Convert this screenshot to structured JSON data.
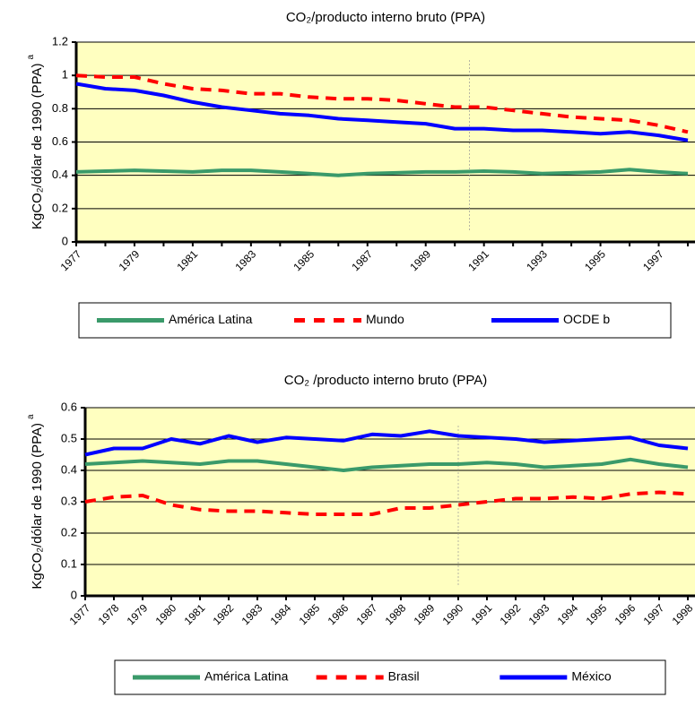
{
  "chart_data": [
    {
      "type": "line",
      "title": "CO₂/producto interno bruto (PPA)",
      "y_label": "KgCO₂/dólar de 1990 (PPA)",
      "y_label_note": "a",
      "categories": [
        "1977",
        null,
        "1979",
        null,
        "1981",
        null,
        "1983",
        null,
        "1985",
        null,
        "1987",
        null,
        "1989",
        null,
        "1991",
        null,
        "1993",
        null,
        "1995",
        null,
        "1997",
        null
      ],
      "ylim": [
        0,
        1.2
      ],
      "yticks": [
        0,
        0.2,
        0.4,
        0.6,
        0.8,
        1,
        1.2
      ],
      "grid": true,
      "series": [
        {
          "name": "América Latina",
          "color": "#3a9a6a",
          "style": "solid",
          "values": [
            0.42,
            0.425,
            0.43,
            0.425,
            0.42,
            0.43,
            0.43,
            0.42,
            0.41,
            0.4,
            0.41,
            0.415,
            0.42,
            0.42,
            0.425,
            0.42,
            0.41,
            0.415,
            0.42,
            0.435,
            0.42,
            0.41
          ]
        },
        {
          "name": "Mundo",
          "color": "#ff0000",
          "style": "dashed",
          "values": [
            1.0,
            0.99,
            0.99,
            0.95,
            0.92,
            0.91,
            0.89,
            0.89,
            0.87,
            0.86,
            0.86,
            0.85,
            0.83,
            0.81,
            0.81,
            0.79,
            0.77,
            0.75,
            0.74,
            0.73,
            0.7,
            0.66
          ]
        },
        {
          "name": "OCDE b",
          "color": "#0000ff",
          "style": "solid",
          "values": [
            0.95,
            0.92,
            0.91,
            0.88,
            0.84,
            0.81,
            0.79,
            0.77,
            0.76,
            0.74,
            0.73,
            0.72,
            0.71,
            0.68,
            0.68,
            0.67,
            0.67,
            0.66,
            0.65,
            0.66,
            0.64,
            0.61
          ]
        }
      ]
    },
    {
      "type": "line",
      "title": "CO₂ /producto interno bruto (PPA)",
      "y_label": "KgCO₂/dólar de 1990 (PPA)",
      "y_label_note": "a",
      "categories": [
        "1977",
        "1978",
        "1979",
        "1980",
        "1981",
        "1982",
        "1983",
        "1984",
        "1985",
        "1986",
        "1987",
        "1988",
        "1989",
        "1990",
        "1991",
        "1992",
        "1993",
        "1994",
        "1995",
        "1996",
        "1997",
        "1998"
      ],
      "ylim": [
        0,
        0.6
      ],
      "yticks": [
        0,
        0.1,
        0.2,
        0.3,
        0.4,
        0.5,
        0.6
      ],
      "grid": true,
      "series": [
        {
          "name": "América Latina",
          "color": "#3a9a6a",
          "style": "solid",
          "values": [
            0.42,
            0.425,
            0.43,
            0.425,
            0.42,
            0.43,
            0.43,
            0.42,
            0.41,
            0.4,
            0.41,
            0.415,
            0.42,
            0.42,
            0.425,
            0.42,
            0.41,
            0.415,
            0.42,
            0.435,
            0.42,
            0.41
          ]
        },
        {
          "name": "Brasil",
          "color": "#ff0000",
          "style": "dashed",
          "values": [
            0.3,
            0.315,
            0.32,
            0.29,
            0.275,
            0.27,
            0.27,
            0.265,
            0.26,
            0.26,
            0.26,
            0.28,
            0.28,
            0.29,
            0.3,
            0.31,
            0.31,
            0.315,
            0.31,
            0.325,
            0.33,
            0.325
          ]
        },
        {
          "name": "México",
          "color": "#0000ff",
          "style": "solid",
          "values": [
            0.45,
            0.47,
            0.47,
            0.5,
            0.485,
            0.51,
            0.49,
            0.505,
            0.5,
            0.495,
            0.515,
            0.51,
            0.525,
            0.51,
            0.505,
            0.5,
            0.49,
            0.495,
            0.5,
            0.505,
            0.48,
            0.47
          ]
        }
      ]
    }
  ]
}
